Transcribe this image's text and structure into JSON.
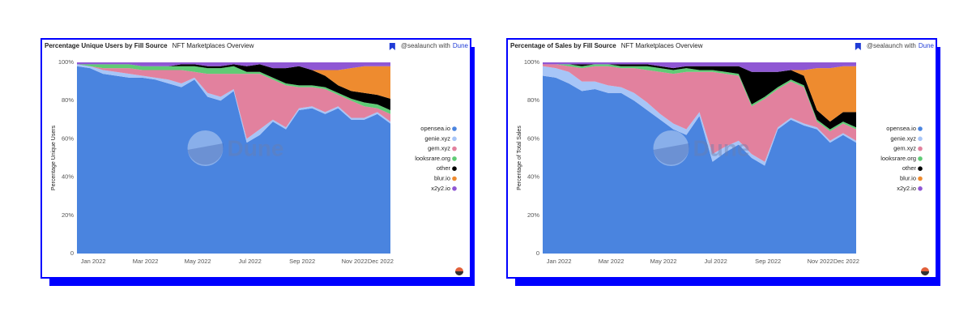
{
  "chart_data": [
    {
      "type": "stacked_area",
      "title": "Percentage Unique Users by Fill Source",
      "subtitle": "NFT Marketplaces Overview",
      "attribution": "@sealaunch with",
      "attribution_link": "Dune",
      "watermark": "Dune",
      "ylabel": "Percentage Unique Users",
      "categories": [
        null,
        "Jan 2022",
        null,
        null,
        null,
        "Mar 2022",
        null,
        null,
        null,
        "May 2022",
        null,
        null,
        null,
        "Jul 2022",
        null,
        null,
        null,
        "Sep 2022",
        null,
        null,
        null,
        "Nov 2022",
        null,
        "Dec 2022",
        null
      ],
      "ylim": [
        0,
        100
      ],
      "yticks": [
        0,
        {
          "value": 20,
          "label": "20%"
        },
        {
          "value": 40,
          "label": "40%"
        },
        {
          "value": 60,
          "label": "60%"
        },
        {
          "value": 80,
          "label": "80%"
        },
        {
          "value": 100,
          "label": "100%"
        }
      ],
      "series": [
        {
          "name": "opensea.io",
          "color": "#4a84df",
          "values": [
            98,
            97,
            94,
            93,
            92,
            92,
            91,
            89,
            87,
            91,
            82,
            80,
            85,
            58,
            62,
            69,
            65,
            75,
            76,
            73,
            76,
            70,
            70,
            73,
            68
          ]
        },
        {
          "name": "genie.xyz",
          "color": "#a7c5f7",
          "values": [
            1,
            1,
            2,
            2,
            2,
            1,
            1,
            2,
            2,
            1,
            2,
            2,
            1,
            2,
            3,
            1,
            1,
            1,
            1,
            1,
            1,
            1,
            1,
            1,
            1
          ]
        },
        {
          "name": "gem.xyz",
          "color": "#e2819e",
          "values": [
            0,
            0,
            1,
            2,
            3,
            3,
            4,
            5,
            7,
            3,
            10,
            12,
            8,
            34,
            29,
            21,
            22,
            11,
            10,
            12,
            6,
            9,
            6,
            2,
            4
          ]
        },
        {
          "name": "looksrare.org",
          "color": "#5fcb75",
          "values": [
            0,
            1,
            2,
            2,
            2,
            2,
            2,
            2,
            2,
            3,
            3,
            3,
            4,
            1,
            1,
            1,
            1,
            1,
            1,
            1,
            1,
            1,
            2,
            2,
            2
          ]
        },
        {
          "name": "other",
          "color": "#000000",
          "values": [
            0,
            0,
            0,
            0,
            0,
            0,
            0,
            0,
            1,
            1,
            1,
            1,
            1,
            3,
            4,
            5,
            8,
            10,
            8,
            6,
            4,
            4,
            5,
            5,
            6
          ]
        },
        {
          "name": "blur.io",
          "color": "#ee8b2f",
          "values": [
            0,
            0,
            0,
            0,
            0,
            0,
            0,
            0,
            0,
            0,
            0,
            0,
            0,
            0,
            0,
            0,
            0,
            0,
            0,
            3,
            8,
            12,
            14,
            15,
            17
          ]
        },
        {
          "name": "x2y2.io",
          "color": "#8f57d4",
          "values": [
            1,
            1,
            1,
            1,
            1,
            2,
            2,
            2,
            1,
            1,
            2,
            2,
            1,
            2,
            1,
            3,
            3,
            2,
            4,
            4,
            4,
            3,
            2,
            2,
            2
          ]
        }
      ]
    },
    {
      "type": "stacked_area",
      "title": "Percentage of Sales by Fill Source",
      "subtitle": "NFT Marketplaces Overview",
      "attribution": "@sealaunch with",
      "attribution_link": "Dune",
      "watermark": "Dune",
      "ylabel": "Percentage of Total Sales",
      "categories": [
        null,
        "Jan 2022",
        null,
        null,
        null,
        "Mar 2022",
        null,
        null,
        null,
        "May 2022",
        null,
        null,
        null,
        "Jul 2022",
        null,
        null,
        null,
        "Sep 2022",
        null,
        null,
        null,
        "Nov 2022",
        null,
        "Dec 2022",
        null
      ],
      "ylim": [
        0,
        100
      ],
      "yticks": [
        0,
        {
          "value": 20,
          "label": "20%"
        },
        {
          "value": 40,
          "label": "40%"
        },
        {
          "value": 60,
          "label": "60%"
        },
        {
          "value": 80,
          "label": "80%"
        },
        {
          "value": 100,
          "label": "100%"
        }
      ],
      "series": [
        {
          "name": "opensea.io",
          "color": "#4a84df",
          "values": [
            93,
            92,
            89,
            85,
            86,
            84,
            84,
            80,
            75,
            70,
            65,
            62,
            72,
            48,
            53,
            57,
            50,
            46,
            65,
            70,
            67,
            65,
            58,
            62,
            58
          ]
        },
        {
          "name": "genie.xyz",
          "color": "#a7c5f7",
          "values": [
            5,
            5,
            6,
            5,
            4,
            4,
            3,
            4,
            4,
            3,
            3,
            3,
            2,
            4,
            3,
            2,
            2,
            2,
            1,
            1,
            1,
            1,
            1,
            1,
            1
          ]
        },
        {
          "name": "gem.xyz",
          "color": "#e2819e",
          "values": [
            1,
            2,
            3,
            7,
            8,
            10,
            10,
            13,
            17,
            22,
            26,
            30,
            21,
            43,
            38,
            34,
            25,
            33,
            20,
            19,
            19,
            3,
            5,
            5,
            6
          ]
        },
        {
          "name": "looksrare.org",
          "color": "#5fcb75",
          "values": [
            0,
            0,
            1,
            1,
            1,
            1,
            1,
            1,
            2,
            2,
            2,
            2,
            1,
            1,
            1,
            1,
            1,
            1,
            1,
            1,
            1,
            1,
            1,
            1,
            1
          ]
        },
        {
          "name": "other",
          "color": "#000000",
          "values": [
            0,
            0,
            0,
            1,
            0,
            0,
            1,
            1,
            1,
            1,
            1,
            1,
            2,
            2,
            3,
            4,
            17,
            13,
            8,
            5,
            5,
            5,
            4,
            5,
            8
          ]
        },
        {
          "name": "blur.io",
          "color": "#ee8b2f",
          "values": [
            0,
            0,
            0,
            0,
            0,
            0,
            0,
            0,
            0,
            0,
            0,
            0,
            0,
            0,
            0,
            0,
            0,
            0,
            0,
            0,
            3,
            22,
            28,
            24,
            24
          ]
        },
        {
          "name": "x2y2.io",
          "color": "#8f57d4",
          "values": [
            1,
            1,
            1,
            1,
            1,
            1,
            1,
            1,
            1,
            2,
            3,
            2,
            2,
            2,
            2,
            2,
            5,
            5,
            5,
            4,
            4,
            3,
            3,
            2,
            2
          ]
        }
      ]
    }
  ]
}
